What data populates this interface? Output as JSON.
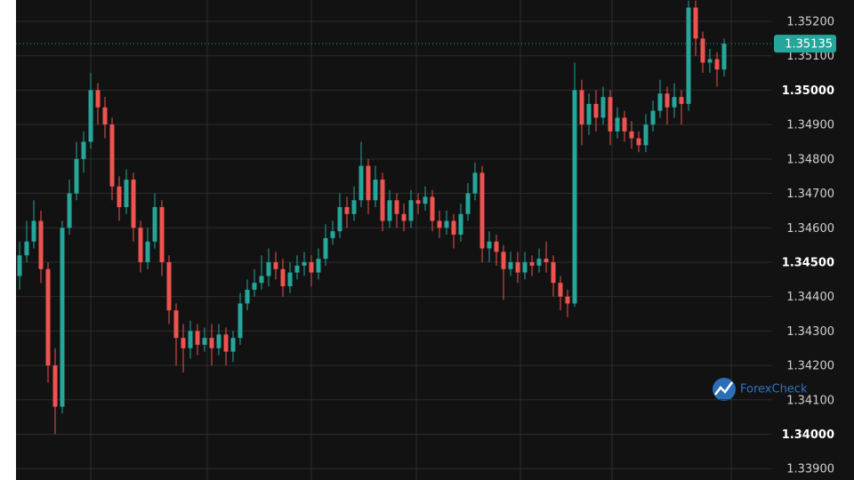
{
  "chart_data": {
    "type": "candlestick",
    "open": [
      1.3446,
      1.3452,
      1.3456,
      1.3462,
      1.3448,
      1.342,
      1.3408,
      1.346,
      1.347,
      1.348,
      1.3485,
      1.35,
      1.3495,
      1.349,
      1.3472,
      1.3466,
      1.3474,
      1.346,
      1.345,
      1.3456,
      1.3466,
      1.345,
      1.3436,
      1.3428,
      1.3425,
      1.343,
      1.3426,
      1.3428,
      1.3425,
      1.3429,
      1.3424,
      1.3428,
      1.3438,
      1.3442,
      1.3444,
      1.3446,
      1.345,
      1.3448,
      1.3443,
      1.3447,
      1.3449,
      1.345,
      1.3447,
      1.3451,
      1.3457,
      1.3459,
      1.3466,
      1.3464,
      1.3468,
      1.3478,
      1.3468,
      1.3474,
      1.3462,
      1.3468,
      1.3464,
      1.3462,
      1.3468,
      1.3467,
      1.3469,
      1.3462,
      1.346,
      1.3462,
      1.3458,
      1.3464,
      1.347,
      1.3476,
      1.3454,
      1.3456,
      1.3453,
      1.3448,
      1.345,
      1.3447,
      1.345,
      1.3449,
      1.3451,
      1.345,
      1.3444,
      1.344,
      1.3438,
      1.35,
      1.349,
      1.3496,
      1.3492,
      1.3498,
      1.3488,
      1.3492,
      1.3488,
      1.3486,
      1.3484,
      1.349,
      1.3494,
      1.3499,
      1.3495,
      1.3498,
      1.3496,
      1.3524,
      1.3515,
      1.3508,
      1.3509,
      1.3506
    ],
    "high": [
      1.3456,
      1.3462,
      1.3468,
      1.3465,
      1.345,
      1.3425,
      1.3462,
      1.3474,
      1.3485,
      1.3488,
      1.3505,
      1.3502,
      1.3498,
      1.3492,
      1.3475,
      1.3477,
      1.3476,
      1.3462,
      1.346,
      1.347,
      1.3468,
      1.3452,
      1.3438,
      1.3432,
      1.3433,
      1.3432,
      1.3431,
      1.3432,
      1.3432,
      1.3431,
      1.343,
      1.3441,
      1.3445,
      1.3448,
      1.3452,
      1.3454,
      1.3453,
      1.3451,
      1.345,
      1.3452,
      1.3453,
      1.3452,
      1.3454,
      1.3461,
      1.3462,
      1.347,
      1.3469,
      1.3472,
      1.3485,
      1.348,
      1.3478,
      1.3476,
      1.3471,
      1.347,
      1.3467,
      1.3471,
      1.347,
      1.3472,
      1.3471,
      1.3465,
      1.3465,
      1.3464,
      1.3467,
      1.3473,
      1.3479,
      1.3478,
      1.3459,
      1.3458,
      1.3455,
      1.3453,
      1.3453,
      1.3453,
      1.3452,
      1.3454,
      1.3456,
      1.3452,
      1.3446,
      1.3442,
      1.3508,
      1.3503,
      1.3499,
      1.35,
      1.3501,
      1.35,
      1.3495,
      1.3494,
      1.3491,
      1.3488,
      1.3493,
      1.3497,
      1.3503,
      1.3501,
      1.3502,
      1.35,
      1.3526,
      1.3526,
      1.3517,
      1.3512,
      1.3511,
      1.3515
    ],
    "low": [
      1.3442,
      1.345,
      1.3454,
      1.3444,
      1.3415,
      1.34,
      1.3406,
      1.3458,
      1.3468,
      1.3476,
      1.3483,
      1.349,
      1.3486,
      1.3468,
      1.3462,
      1.3464,
      1.3456,
      1.3447,
      1.3448,
      1.3454,
      1.3446,
      1.3432,
      1.342,
      1.3418,
      1.3422,
      1.3423,
      1.3424,
      1.342,
      1.3423,
      1.342,
      1.3421,
      1.3426,
      1.3436,
      1.344,
      1.3442,
      1.3443,
      1.3445,
      1.344,
      1.3441,
      1.3445,
      1.3446,
      1.3443,
      1.3445,
      1.3449,
      1.3455,
      1.3457,
      1.346,
      1.3462,
      1.3466,
      1.3464,
      1.3466,
      1.3459,
      1.346,
      1.346,
      1.3459,
      1.346,
      1.3464,
      1.3465,
      1.3459,
      1.3457,
      1.3458,
      1.3454,
      1.3456,
      1.3462,
      1.3468,
      1.345,
      1.345,
      1.3449,
      1.3439,
      1.3446,
      1.3444,
      1.3445,
      1.3446,
      1.3447,
      1.3447,
      1.344,
      1.3436,
      1.3434,
      1.3437,
      1.3484,
      1.3487,
      1.3488,
      1.349,
      1.3484,
      1.3486,
      1.3485,
      1.3483,
      1.3482,
      1.3482,
      1.3488,
      1.3492,
      1.349,
      1.3492,
      1.349,
      1.3494,
      1.351,
      1.3505,
      1.3505,
      1.3501,
      1.3504
    ],
    "close": [
      1.3452,
      1.3456,
      1.3462,
      1.3448,
      1.342,
      1.3408,
      1.346,
      1.347,
      1.348,
      1.3485,
      1.35,
      1.3495,
      1.349,
      1.3472,
      1.3466,
      1.3474,
      1.346,
      1.345,
      1.3456,
      1.3466,
      1.345,
      1.3436,
      1.3428,
      1.3425,
      1.343,
      1.3426,
      1.3428,
      1.3425,
      1.3429,
      1.3424,
      1.3428,
      1.3438,
      1.3442,
      1.3444,
      1.3446,
      1.345,
      1.3448,
      1.3443,
      1.3447,
      1.3449,
      1.345,
      1.3447,
      1.3451,
      1.3457,
      1.3459,
      1.3466,
      1.3464,
      1.3468,
      1.3478,
      1.3468,
      1.3474,
      1.3462,
      1.3468,
      1.3464,
      1.3462,
      1.3468,
      1.3467,
      1.3469,
      1.3462,
      1.346,
      1.3462,
      1.3458,
      1.3464,
      1.347,
      1.3476,
      1.3454,
      1.3456,
      1.3453,
      1.3448,
      1.345,
      1.3447,
      1.345,
      1.3449,
      1.3451,
      1.345,
      1.3444,
      1.344,
      1.3438,
      1.35,
      1.349,
      1.3496,
      1.3492,
      1.3498,
      1.3488,
      1.3492,
      1.3488,
      1.3486,
      1.3484,
      1.349,
      1.3494,
      1.3499,
      1.3495,
      1.3498,
      1.3496,
      1.3524,
      1.3515,
      1.3508,
      1.3509,
      1.3506,
      1.35135
    ],
    "up_color": "#26a69a",
    "down_color": "#ef5350",
    "ylim": [
      1.33867,
      1.35262
    ],
    "yticks": [
      {
        "value": 1.339,
        "label": "1.33900"
      },
      {
        "value": 1.34,
        "label": "1.34000"
      },
      {
        "value": 1.341,
        "label": "1.34100"
      },
      {
        "value": 1.342,
        "label": "1.34200"
      },
      {
        "value": 1.343,
        "label": "1.34300"
      },
      {
        "value": 1.344,
        "label": "1.34400"
      },
      {
        "value": 1.345,
        "label": "1.34500"
      },
      {
        "value": 1.346,
        "label": "1.34600"
      },
      {
        "value": 1.347,
        "label": "1.34700"
      },
      {
        "value": 1.348,
        "label": "1.34800"
      },
      {
        "value": 1.349,
        "label": "1.34900"
      },
      {
        "value": 1.35,
        "label": "1.35000"
      },
      {
        "value": 1.351,
        "label": "1.35100"
      },
      {
        "value": 1.352,
        "label": "1.35200"
      }
    ],
    "grid": true,
    "last_price": 1.35135,
    "watermark": "ForexCheck"
  }
}
